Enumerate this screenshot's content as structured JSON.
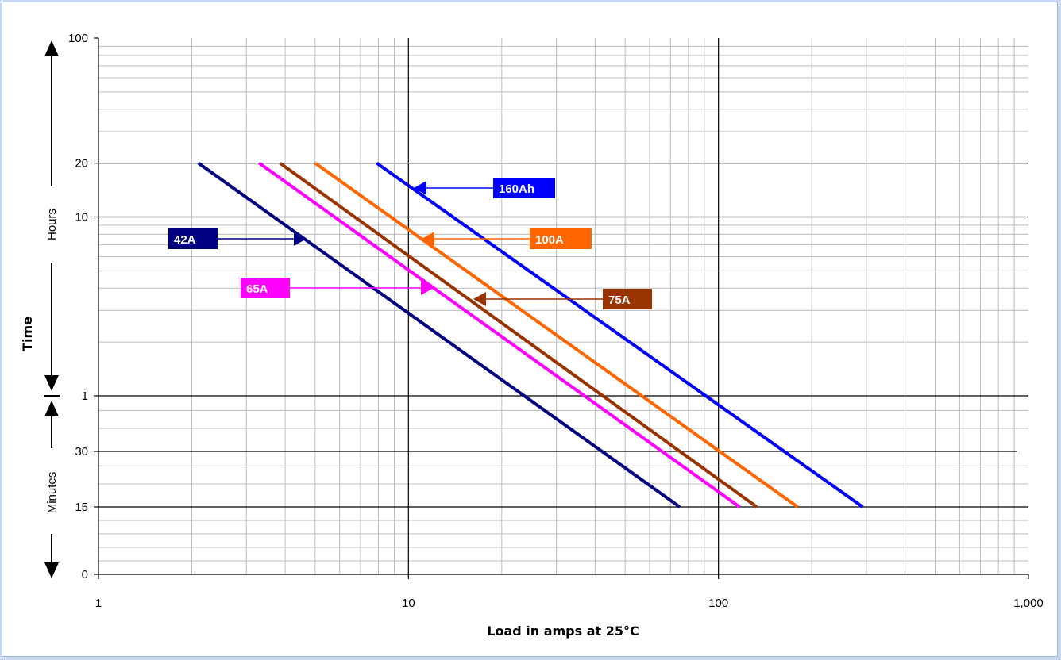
{
  "chart_data": {
    "type": "line",
    "xlabel": "Load in amps at 25°C",
    "ylabel": "Time",
    "x_scale": "log",
    "xlim": [
      1,
      1000
    ],
    "x_ticks": [
      {
        "value": 1,
        "label": "1"
      },
      {
        "value": 10,
        "label": "10"
      },
      {
        "value": 100,
        "label": "100"
      },
      {
        "value": 1000,
        "label": "1,000"
      }
    ],
    "y_ticks": [
      {
        "label": "100",
        "unit": "hours"
      },
      {
        "label": "20",
        "unit": "hours"
      },
      {
        "label": "10",
        "unit": "hours"
      },
      {
        "label": "1",
        "unit": "hours"
      },
      {
        "label": "30",
        "unit": "minutes"
      },
      {
        "label": "15",
        "unit": "minutes"
      },
      {
        "label": "0",
        "unit": "minutes"
      }
    ],
    "y_sections": {
      "upper": "Hours",
      "lower": "Minutes"
    },
    "grid": true,
    "series": [
      {
        "name": "42A",
        "color": "#000080",
        "points": [
          [
            2.1,
            20
          ],
          [
            75,
            0.25
          ]
        ]
      },
      {
        "name": "65A",
        "color": "#ff00ff",
        "points": [
          [
            3.3,
            20
          ],
          [
            117,
            0.25
          ]
        ]
      },
      {
        "name": "75A",
        "color": "#993300",
        "points": [
          [
            3.85,
            20
          ],
          [
            133,
            0.25
          ]
        ]
      },
      {
        "name": "100A",
        "color": "#ff6600",
        "points": [
          [
            5.0,
            20
          ],
          [
            180,
            0.25
          ]
        ]
      },
      {
        "name": "160Ah",
        "color": "#0000ff",
        "points": [
          [
            7.9,
            20
          ],
          [
            292,
            0.25
          ]
        ]
      }
    ]
  }
}
